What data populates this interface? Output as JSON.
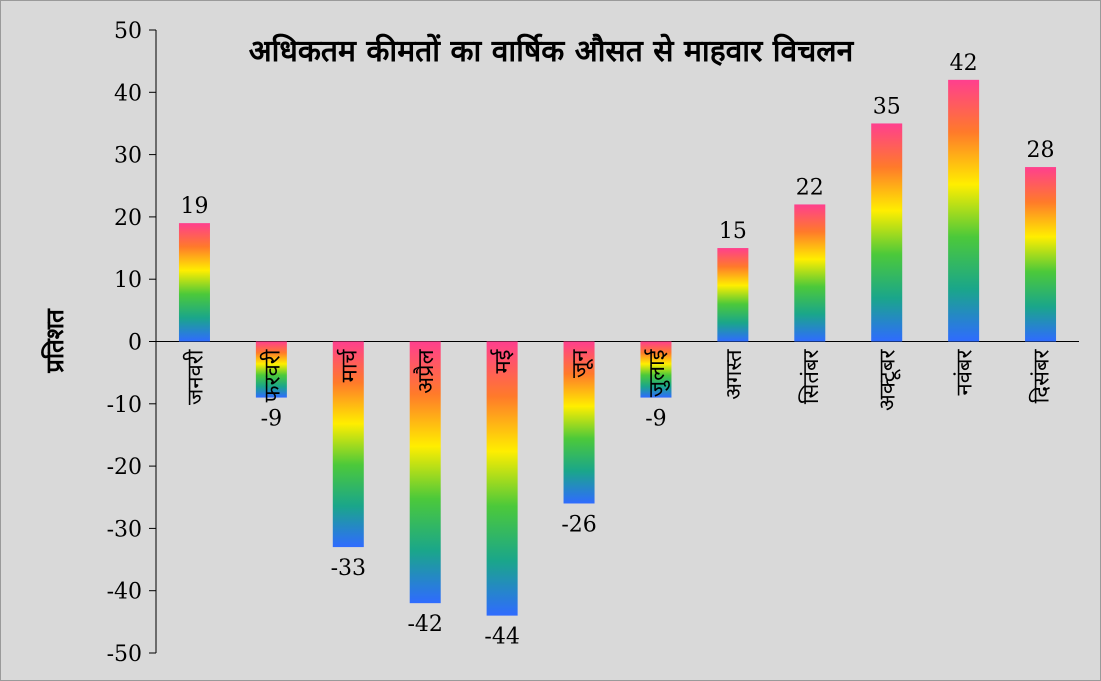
{
  "chart_data": {
    "type": "bar",
    "title": "अधिकतम कीमतों का वार्षिक औसत से माहवार विचलन",
    "xlabel": "",
    "ylabel": "प्रतिशत",
    "categories": [
      "जनवरी",
      "फरवरी",
      "मार्च",
      "अप्रैल",
      "मई",
      "जून",
      "जुलाई",
      "अगस्त",
      "सितंबर",
      "अक्टूबर",
      "नवंबर",
      "दिसंबर"
    ],
    "values": [
      19,
      -9,
      -33,
      -42,
      -44,
      -26,
      -9,
      15,
      22,
      35,
      42,
      28
    ],
    "data_labels": [
      "19",
      "-9",
      "-33",
      "-42",
      "-44",
      "-26",
      "-9",
      "15",
      "22",
      "35",
      "42",
      "28"
    ],
    "ylim": [
      -50,
      50
    ],
    "yticks": [
      50,
      40,
      30,
      20,
      10,
      0,
      -10,
      -20,
      -30,
      -40,
      -50
    ],
    "ytick_labels": [
      "50",
      "40",
      "30",
      "20",
      "10",
      "0",
      "-10",
      "-20",
      "-30",
      "-40",
      "-50"
    ],
    "grid": false,
    "legend": "none",
    "gradient_colors": [
      "#ff3f8e",
      "#ff7a2a",
      "#ffee00",
      "#4cc93a",
      "#1aa68a",
      "#2f6bff"
    ]
  }
}
